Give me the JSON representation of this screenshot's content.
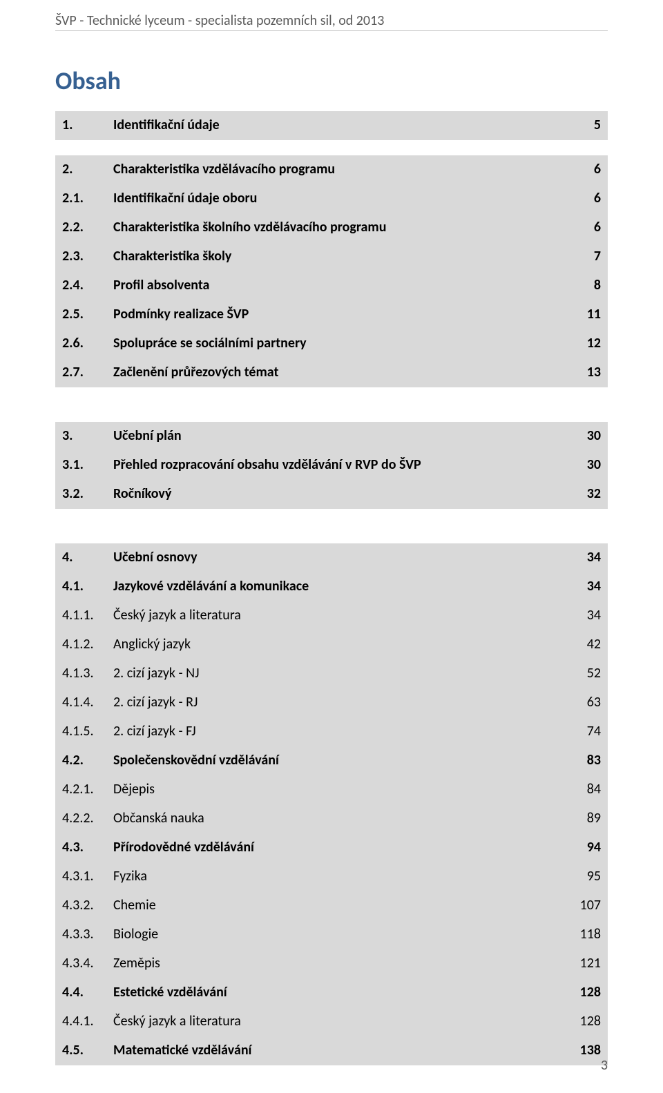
{
  "header": "ŠVP - Technické lyceum - specialista pozemních sil, od 2013",
  "title": "Obsah",
  "page_number": "3",
  "colors": {
    "header_text": "#595959",
    "header_rule": "#c9c9c9",
    "title": "#366091",
    "highlight_bg": "#d9d9d9",
    "text": "#000000",
    "background": "#ffffff"
  },
  "typography": {
    "font_family": "Calibri",
    "header_fontsize_pt": 15,
    "title_fontsize_pt": 27,
    "row_fontsize_pt": 15
  },
  "toc": [
    {
      "num": "1.",
      "title": "Identifikační údaje",
      "page": "5",
      "bold": true,
      "highlight": true,
      "gap_after": "sm"
    },
    {
      "num": "2.",
      "title": "Charakteristika vzdělávacího programu",
      "page": "6",
      "bold": true,
      "highlight": true
    },
    {
      "num": "2.1.",
      "title": "Identifikační údaje oboru",
      "page": "6",
      "bold": true,
      "highlight": true
    },
    {
      "num": "2.2.",
      "title": "Charakteristika školního vzdělávacího programu",
      "page": "6",
      "bold": true,
      "highlight": true
    },
    {
      "num": "2.3.",
      "title": "Charakteristika školy",
      "page": "7",
      "bold": true,
      "highlight": true
    },
    {
      "num": "2.4.",
      "title": "Profil absolventa",
      "page": "8",
      "bold": true,
      "highlight": true
    },
    {
      "num": "2.5.",
      "title": "Podmínky realizace ŠVP",
      "page": "11",
      "bold": true,
      "highlight": true
    },
    {
      "num": "2.6.",
      "title": "Spolupráce se sociálními partnery",
      "page": "12",
      "bold": true,
      "highlight": true
    },
    {
      "num": "2.7.",
      "title": "Začlenění průřezových témat",
      "page": "13",
      "bold": true,
      "highlight": true,
      "gap_after": "lg"
    },
    {
      "num": "3.",
      "title": "Učební plán",
      "page": "30",
      "bold": true,
      "highlight": true
    },
    {
      "num": "3.1.",
      "title": "Přehled rozpracování obsahu vzdělávání v RVP do ŠVP",
      "page": "30",
      "bold": true,
      "highlight": true
    },
    {
      "num": "3.2.",
      "title": "Ročníkový",
      "page": "32",
      "bold": true,
      "highlight": true,
      "gap_after": "lg"
    },
    {
      "num": "4.",
      "title": "Učební osnovy",
      "page": "34",
      "bold": true,
      "highlight": true
    },
    {
      "num": "4.1.",
      "title": "Jazykové vzdělávání a komunikace",
      "page": "34",
      "bold": true,
      "highlight": true
    },
    {
      "num": "4.1.1.",
      "title": "Český jazyk a literatura",
      "page": "34",
      "bold": false,
      "highlight": true
    },
    {
      "num": "4.1.2.",
      "title": "Anglický jazyk",
      "page": "42",
      "bold": false,
      "highlight": true
    },
    {
      "num": "4.1.3.",
      "title": "2. cizí jazyk - NJ",
      "page": "52",
      "bold": false,
      "highlight": true
    },
    {
      "num": "4.1.4.",
      "title": "2. cizí jazyk - RJ",
      "page": "63",
      "bold": false,
      "highlight": true
    },
    {
      "num": "4.1.5.",
      "title": "2. cizí jazyk - FJ",
      "page": "74",
      "bold": false,
      "highlight": true
    },
    {
      "num": "4.2.",
      "title": "Společenskovědní vzdělávání",
      "page": "83",
      "bold": true,
      "highlight": true
    },
    {
      "num": "4.2.1.",
      "title": "Dějepis",
      "page": "84",
      "bold": false,
      "highlight": true
    },
    {
      "num": "4.2.2.",
      "title": "Občanská nauka",
      "page": "89",
      "bold": false,
      "highlight": true
    },
    {
      "num": "4.3.",
      "title": "Přírodovědné vzdělávání",
      "page": "94",
      "bold": true,
      "highlight": true
    },
    {
      "num": "4.3.1.",
      "title": "Fyzika",
      "page": "95",
      "bold": false,
      "highlight": true
    },
    {
      "num": "4.3.2.",
      "title": "Chemie",
      "page": "107",
      "bold": false,
      "highlight": true
    },
    {
      "num": "4.3.3.",
      "title": "Biologie",
      "page": "118",
      "bold": false,
      "highlight": true
    },
    {
      "num": "4.3.4.",
      "title": "Zeměpis",
      "page": "121",
      "bold": false,
      "highlight": true
    },
    {
      "num": "4.4.",
      "title": "Estetické vzdělávání",
      "page": "128",
      "bold": true,
      "highlight": true
    },
    {
      "num": "4.4.1.",
      "title": "Český jazyk a literatura",
      "page": "128",
      "bold": false,
      "highlight": true
    },
    {
      "num": "4.5.",
      "title": "Matematické vzdělávání",
      "page": "138",
      "bold": true,
      "highlight": true
    }
  ]
}
